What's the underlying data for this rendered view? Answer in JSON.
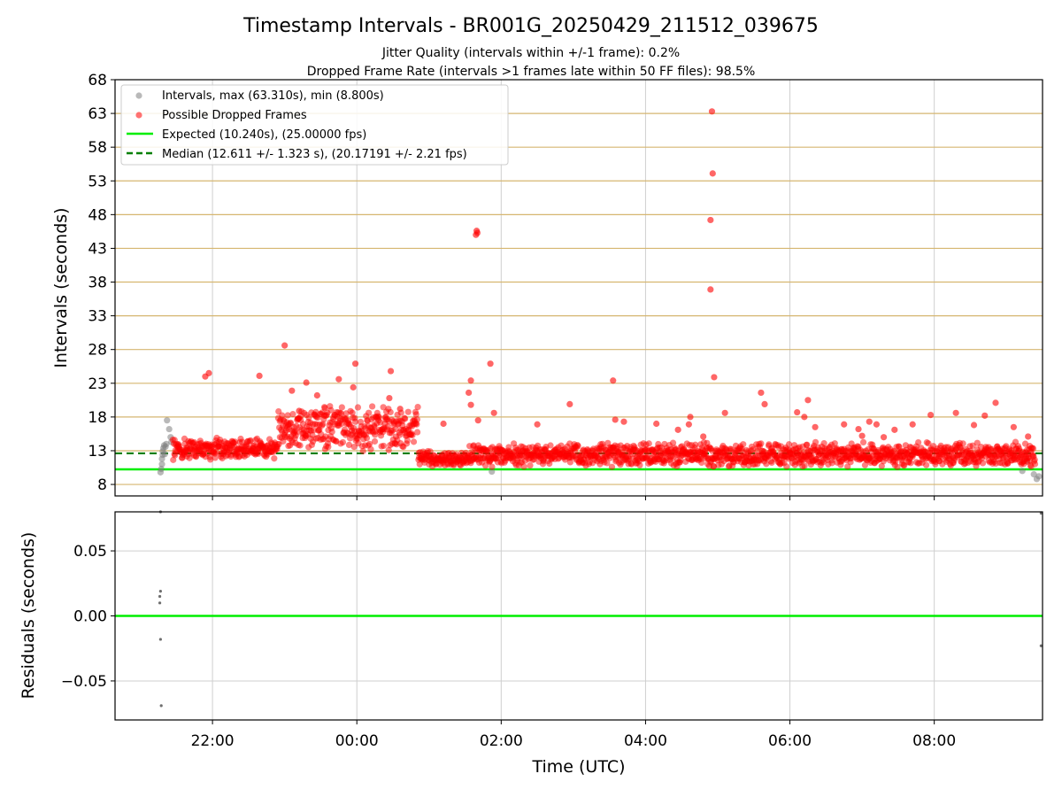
{
  "chart_data": [
    {
      "type": "scatter",
      "title": "Timestamp Intervals - BR001G_20250429_211512_039675",
      "subtitle_lines": [
        "Jitter Quality (intervals within +/-1 frame): 0.2%",
        "Dropped Frame Rate (intervals >1 frames late within 50 FF files): 98.5%"
      ],
      "xlabel": "",
      "ylabel": "Intervals (seconds)",
      "xlim": [
        -1.35,
        11.5
      ],
      "ylim": [
        6.3,
        68
      ],
      "yticks": [
        8,
        13,
        18,
        23,
        28,
        33,
        38,
        43,
        48,
        53,
        58,
        63,
        68
      ],
      "xticks": [
        {
          "value": 0,
          "label": "22:00"
        },
        {
          "value": 2,
          "label": "00:00"
        },
        {
          "value": 4,
          "label": "02:00"
        },
        {
          "value": 6,
          "label": "04:00"
        },
        {
          "value": 8,
          "label": "06:00"
        },
        {
          "value": 10,
          "label": "08:00"
        }
      ],
      "horizontal_gridlines": [
        8,
        13,
        18,
        23,
        28,
        33,
        38,
        43,
        48,
        53,
        58,
        63
      ],
      "grid": true,
      "legend_placement": "top-left",
      "legend": [
        {
          "label": "Intervals, max (63.310s), min (8.800s)",
          "marker": "dot",
          "color": "#808080"
        },
        {
          "label": "Possible Dropped Frames",
          "marker": "dot",
          "color": "#ff0000"
        },
        {
          "label": "Expected (10.240s), (25.00000 fps)",
          "marker": "line",
          "color": "#00ee00"
        },
        {
          "label": "Median (12.611 +/- 1.323 s), (20.17191 +/- 2.21 fps)",
          "marker": "dashed-line",
          "color": "#007f00"
        }
      ],
      "expected_line": 10.24,
      "median_line": 12.611,
      "series": [
        {
          "name": "Intervals, max (63.310s), min (8.800s)",
          "color": "#808080",
          "points": [
            [
              -0.72,
              9.8
            ],
            [
              -0.71,
              10.3
            ],
            [
              -0.7,
              11.0
            ],
            [
              -0.7,
              11.8
            ],
            [
              -0.69,
              12.4
            ],
            [
              -0.69,
              12.9
            ],
            [
              -0.68,
              13.4
            ],
            [
              -0.67,
              13.8
            ],
            [
              -0.66,
              12.5
            ],
            [
              -0.65,
              13.6
            ],
            [
              -0.64,
              14.0
            ],
            [
              -0.63,
              17.5
            ],
            [
              -0.6,
              16.2
            ],
            [
              -0.58,
              15.0
            ],
            [
              -0.57,
              14.3
            ],
            [
              3.87,
              9.9
            ],
            [
              11.22,
              10.0
            ],
            [
              11.28,
              11.5
            ],
            [
              11.38,
              9.5
            ],
            [
              11.42,
              8.8
            ],
            [
              11.45,
              9.2
            ]
          ]
        },
        {
          "name": "Possible Dropped Frames",
          "color": "#ff0000",
          "points": [
            [
              -0.1,
              24.0
            ],
            [
              -0.05,
              24.5
            ],
            [
              0.65,
              24.1
            ],
            [
              1.1,
              21.9
            ],
            [
              1.3,
              23.1
            ],
            [
              1.05,
              16.8
            ],
            [
              1.2,
              18.9
            ],
            [
              1.45,
              21.2
            ],
            [
              1.55,
              18.2
            ],
            [
              1.75,
              23.6
            ],
            [
              1.95,
              22.4
            ],
            [
              1.98,
              25.9
            ],
            [
              2.45,
              20.8
            ],
            [
              2.47,
              24.8
            ],
            [
              2.6,
              19.2
            ],
            [
              3.2,
              17.0
            ],
            [
              3.55,
              21.6
            ],
            [
              3.58,
              19.8
            ],
            [
              3.85,
              25.9
            ],
            [
              3.9,
              18.6
            ],
            [
              4.5,
              16.9
            ],
            [
              4.95,
              19.9
            ],
            [
              5.55,
              23.4
            ],
            [
              5.58,
              17.6
            ],
            [
              5.7,
              17.3
            ],
            [
              6.15,
              17.0
            ],
            [
              6.45,
              16.1
            ],
            [
              6.62,
              18.0
            ],
            [
              6.6,
              16.9
            ],
            [
              6.8,
              15.1
            ],
            [
              6.95,
              23.9
            ],
            [
              7.1,
              18.6
            ],
            [
              7.6,
              21.6
            ],
            [
              7.65,
              19.9
            ],
            [
              8.1,
              18.7
            ],
            [
              8.25,
              20.5
            ],
            [
              8.2,
              18.0
            ],
            [
              8.35,
              16.5
            ],
            [
              8.75,
              16.9
            ],
            [
              8.95,
              16.2
            ],
            [
              9.0,
              15.2
            ],
            [
              9.1,
              17.3
            ],
            [
              9.2,
              16.9
            ],
            [
              9.3,
              15.0
            ],
            [
              9.45,
              16.1
            ],
            [
              9.7,
              16.9
            ],
            [
              9.95,
              18.3
            ],
            [
              10.3,
              18.6
            ],
            [
              10.55,
              16.8
            ],
            [
              10.7,
              18.2
            ],
            [
              10.85,
              20.1
            ],
            [
              11.1,
              16.5
            ],
            [
              11.3,
              15.1
            ],
            [
              3.65,
              45.0
            ],
            [
              3.66,
              45.6
            ],
            [
              3.67,
              45.3
            ],
            [
              3.58,
              23.4
            ],
            [
              3.68,
              17.5
            ],
            [
              6.9,
              36.9
            ],
            [
              6.9,
              47.2
            ],
            [
              6.92,
              63.3
            ],
            [
              6.93,
              54.1
            ],
            [
              1.0,
              28.6
            ]
          ],
          "bands": [
            {
              "x_start": -0.55,
              "x_end": 0.9,
              "center": 13.3,
              "spread": 2.2
            },
            {
              "x_start": 0.9,
              "x_end": 2.85,
              "center": 16.3,
              "spread": 4.4
            },
            {
              "x_start": 2.85,
              "x_end": 3.55,
              "center": 11.8,
              "spread": 1.5
            },
            {
              "x_start": 3.55,
              "x_end": 11.4,
              "center": 12.4,
              "spread": 2.4
            }
          ]
        }
      ]
    },
    {
      "type": "scatter",
      "title": "",
      "xlabel": "Time (UTC)",
      "ylabel": "Residuals (seconds)",
      "xlim": [
        -1.35,
        11.5
      ],
      "ylim": [
        -0.08,
        0.08
      ],
      "yticks": [
        {
          "value": 0.05,
          "label": "0.05"
        },
        {
          "value": 0.0,
          "label": "0.00"
        },
        {
          "value": -0.05,
          "label": "−0.05"
        }
      ],
      "xticks": [
        {
          "value": 0,
          "label": "22:00"
        },
        {
          "value": 2,
          "label": "00:00"
        },
        {
          "value": 4,
          "label": "02:00"
        },
        {
          "value": 6,
          "label": "04:00"
        },
        {
          "value": 8,
          "label": "06:00"
        },
        {
          "value": 10,
          "label": "08:00"
        }
      ],
      "grid": true,
      "zero_line": 0.0,
      "series": [
        {
          "name": "",
          "color": "#555555",
          "points": [
            [
              -0.72,
              0.08
            ],
            [
              -0.72,
              0.019
            ],
            [
              -0.73,
              0.015
            ],
            [
              -0.73,
              0.01
            ],
            [
              -0.72,
              -0.018
            ],
            [
              -0.71,
              -0.069
            ],
            [
              11.48,
              0.079
            ],
            [
              11.48,
              -0.023
            ]
          ]
        }
      ]
    }
  ]
}
